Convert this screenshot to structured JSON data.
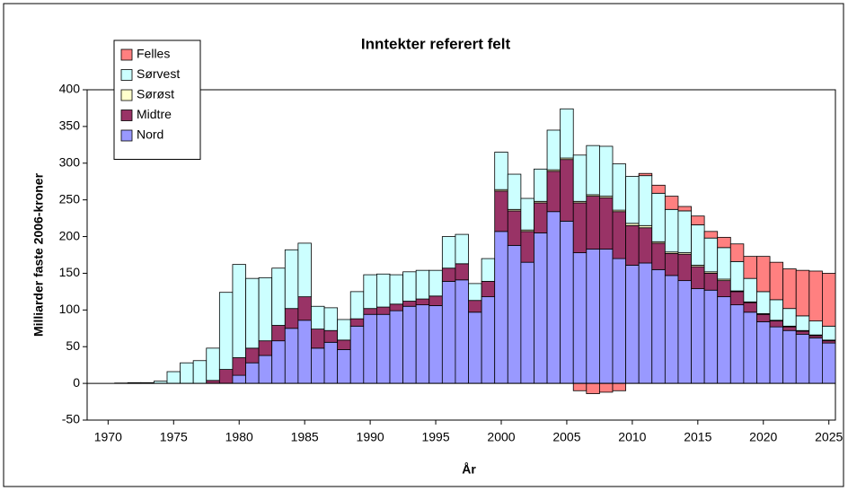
{
  "chart_data": {
    "type": "stacked_bar",
    "title": "Inntekter referert felt",
    "x_label": "År",
    "y_label": "Milliarder faste 2006-kroner",
    "x": [
      1971,
      1972,
      1973,
      1974,
      1975,
      1976,
      1977,
      1978,
      1979,
      1980,
      1981,
      1982,
      1983,
      1984,
      1985,
      1986,
      1987,
      1988,
      1989,
      1990,
      1991,
      1992,
      1993,
      1994,
      1995,
      1996,
      1997,
      1998,
      1999,
      2000,
      2001,
      2002,
      2003,
      2004,
      2005,
      2006,
      2007,
      2008,
      2009,
      2010,
      2011,
      2012,
      2013,
      2014,
      2015,
      2016,
      2017,
      2018,
      2019,
      2020,
      2021,
      2022,
      2023,
      2024,
      2025
    ],
    "series": [
      {
        "name": "Nord",
        "color": "#9999ff",
        "values": [
          0,
          0,
          0,
          0,
          0,
          0,
          0,
          0,
          0,
          11,
          28,
          38,
          58,
          75,
          86,
          48,
          56,
          46,
          78,
          94,
          94,
          99,
          105,
          107,
          106,
          139,
          141,
          97,
          118,
          207,
          188,
          165,
          205,
          234,
          221,
          178,
          183,
          183,
          170,
          161,
          164,
          155,
          147,
          140,
          129,
          127,
          118,
          107,
          97,
          84,
          77,
          72,
          67,
          62,
          55
        ]
      },
      {
        "name": "Midtre",
        "color": "#993366",
        "values": [
          0,
          0,
          0,
          0,
          0,
          0,
          0,
          4,
          19,
          24,
          20,
          20,
          21,
          27,
          32,
          26,
          16,
          13,
          10,
          8,
          10,
          9,
          7,
          8,
          13,
          18,
          22,
          16,
          21,
          55,
          47,
          42,
          41,
          55,
          84,
          68,
          72,
          70,
          64,
          54,
          48,
          36,
          30,
          36,
          30,
          23,
          22,
          18,
          13,
          10,
          8,
          5,
          4,
          3,
          3
        ]
      },
      {
        "name": "Sørøst",
        "color": "#ffffcc",
        "values": [
          0,
          0,
          0,
          0,
          0,
          0,
          0,
          0,
          0,
          0,
          0,
          0,
          0,
          0,
          0,
          0,
          0,
          0,
          0,
          0,
          0,
          0,
          0,
          0,
          0,
          0,
          0,
          0,
          0,
          2,
          2,
          2,
          2,
          2,
          2,
          2,
          2,
          2,
          2,
          3,
          3,
          2,
          2,
          2,
          2,
          2,
          2,
          1,
          1,
          1,
          1,
          1,
          1,
          1,
          1
        ]
      },
      {
        "name": "Sørvest",
        "color": "#ccffff",
        "values": [
          0.5,
          1,
          1,
          3,
          16,
          28,
          31,
          44,
          105,
          127,
          95,
          86,
          78,
          80,
          73,
          31,
          31,
          28,
          37,
          46,
          45,
          40,
          40,
          39,
          35,
          43,
          40,
          23,
          31,
          51,
          48,
          43,
          44,
          54,
          67,
          63,
          67,
          68,
          63,
          64,
          68,
          66,
          58,
          57,
          55,
          46,
          43,
          40,
          32,
          30,
          28,
          24,
          20,
          19,
          19
        ]
      },
      {
        "name": "Felles",
        "color": "#ff8080",
        "values": [
          0,
          0,
          0,
          0,
          0,
          0,
          0,
          0,
          0,
          0,
          0,
          0,
          0,
          0,
          0,
          0,
          0,
          0,
          0,
          0,
          0,
          0,
          0,
          0,
          0,
          0,
          0,
          0,
          0,
          0,
          0,
          0,
          0,
          0,
          0,
          -10,
          -14,
          -12,
          -10,
          0,
          3,
          11,
          18,
          6,
          12,
          9,
          14,
          24,
          30,
          48,
          51,
          54,
          62,
          68,
          72
        ]
      }
    ],
    "xlim": [
      1968.4,
      2025.5
    ],
    "xticks": [
      1970,
      1975,
      1980,
      1985,
      1990,
      1995,
      2000,
      2005,
      2010,
      2015,
      2020,
      2025
    ],
    "ylim": [
      -50,
      400
    ],
    "yticks": [
      -50,
      0,
      50,
      100,
      150,
      200,
      250,
      300,
      350,
      400
    ],
    "legend": "upper left"
  }
}
